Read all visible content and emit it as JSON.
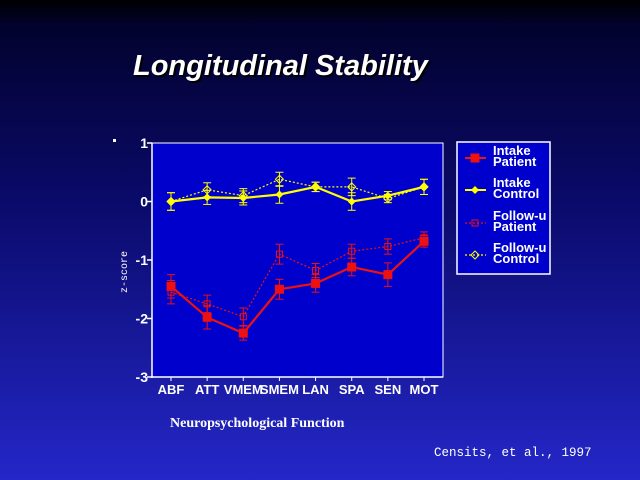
{
  "slide": {
    "title": "Longitudinal Stability",
    "caption": "Neuropsychological Function",
    "citation": "Censits, et al., 1997"
  },
  "colors": {
    "plot_background": "#0000cc",
    "patient": "#ee1111",
    "control": "#ffff00",
    "axis": "#ffffff"
  },
  "chart_data": {
    "type": "line",
    "title": "",
    "xlabel": "",
    "ylabel": "z-score",
    "ylim": [
      -3,
      1
    ],
    "yticks": [
      1,
      0,
      -1,
      -2,
      -3
    ],
    "ytick_labels": [
      "1",
      "0",
      "-1",
      "-2",
      "-3"
    ],
    "categories": [
      "ABF",
      "ATT",
      "VMEM",
      "SMEM",
      "LAN",
      "SPA",
      "SEN",
      "MOT"
    ],
    "category_labels": [
      "ABF",
      "ATT",
      "VMEM",
      "SMEM",
      "LAN",
      "SPA",
      "SEN",
      "MOT"
    ],
    "grid": false,
    "legend_position": "right",
    "series": [
      {
        "name": "Intake Patient",
        "legend_lines": [
          "Intake",
          "Patient"
        ],
        "color": "#ee1111",
        "line": "solid",
        "marker": "filled-square",
        "values": [
          -1.45,
          -1.98,
          -2.25,
          -1.5,
          -1.4,
          -1.12,
          -1.25,
          -0.68
        ],
        "errors": [
          0.2,
          0.2,
          0.12,
          0.17,
          0.15,
          0.15,
          0.2,
          0.1
        ]
      },
      {
        "name": "Intake Control",
        "legend_lines": [
          "Intake",
          "Control"
        ],
        "color": "#ffff00",
        "line": "solid",
        "marker": "filled-diamond",
        "values": [
          0.0,
          0.07,
          0.06,
          0.12,
          0.25,
          0.0,
          0.1,
          0.25
        ],
        "errors": [
          0.15,
          0.12,
          0.12,
          0.15,
          0.08,
          0.15,
          0.07,
          0.13
        ]
      },
      {
        "name": "Follow-up Patient",
        "legend_lines": [
          "Follow-u",
          "Patient"
        ],
        "color": "#ee1111",
        "line": "dotted",
        "marker": "open-square",
        "values": [
          -1.55,
          -1.75,
          -1.97,
          -0.9,
          -1.18,
          -0.85,
          -0.77,
          -0.62
        ],
        "errors": [
          0.2,
          0.15,
          0.15,
          0.17,
          0.12,
          0.12,
          0.13,
          0.1
        ]
      },
      {
        "name": "Follow-up Control",
        "legend_lines": [
          "Follow-u",
          "Control"
        ],
        "color": "#ffff00",
        "line": "dotted",
        "marker": "open-diamond",
        "values": [
          0.0,
          0.2,
          0.1,
          0.38,
          0.25,
          0.25,
          0.05,
          0.25
        ],
        "errors": [
          0.15,
          0.12,
          0.12,
          0.12,
          0.08,
          0.15,
          0.07,
          0.13
        ]
      }
    ]
  }
}
